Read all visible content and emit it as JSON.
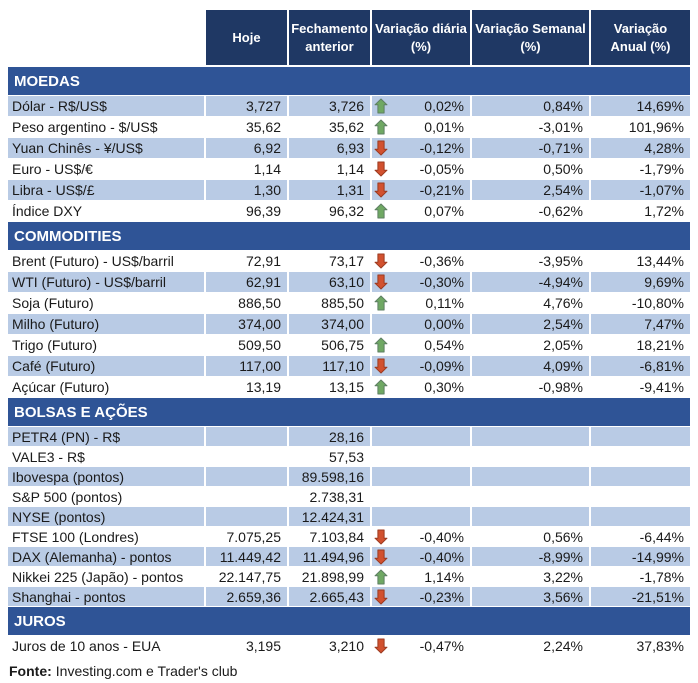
{
  "colors": {
    "header_bg": "#1F3864",
    "section_bg": "#2F5496",
    "row_shaded_bg": "#B9CBE5",
    "row_plain_bg": "#FFFFFF",
    "header_text": "#FFFFFF",
    "body_text": "#1A1A1A",
    "up_arrow_fill": "#6FA863",
    "up_arrow_border": "#5E7F63",
    "down_arrow_fill": "#D2512F",
    "down_arrow_border": "#9B3A20"
  },
  "chart_data": {
    "type": "table",
    "column_headers": {
      "hoje": "Hoje",
      "fechamento": "Fechamento\nanterior",
      "var_diaria": "Variação diária\n(%)",
      "var_semanal": "Variação Semanal\n(%)",
      "var_anual": "Variação\nAnual (%)"
    },
    "sections": [
      {
        "title": "MOEDAS",
        "rows": [
          {
            "label": "Dólar - R$/US$",
            "hoje": "3,727",
            "fechamento": "3,726",
            "arrow": "up",
            "var_diaria": "0,02%",
            "var_semanal": "0,84%",
            "var_anual": "14,69%",
            "shaded": true
          },
          {
            "label": "Peso argentino - $/US$",
            "hoje": "35,62",
            "fechamento": "35,62",
            "arrow": "up",
            "var_diaria": "0,01%",
            "var_semanal": "-3,01%",
            "var_anual": "101,96%",
            "shaded": false
          },
          {
            "label": "Yuan Chinês - ¥/US$",
            "hoje": "6,92",
            "fechamento": "6,93",
            "arrow": "down",
            "var_diaria": "-0,12%",
            "var_semanal": "-0,71%",
            "var_anual": "4,28%",
            "shaded": true
          },
          {
            "label": "Euro - US$/€",
            "hoje": "1,14",
            "fechamento": "1,14",
            "arrow": "down",
            "var_diaria": "-0,05%",
            "var_semanal": "0,50%",
            "var_anual": "-1,79%",
            "shaded": false
          },
          {
            "label": "Libra - US$/£",
            "hoje": "1,30",
            "fechamento": "1,31",
            "arrow": "down",
            "var_diaria": "-0,21%",
            "var_semanal": "2,54%",
            "var_anual": "-1,07%",
            "shaded": true
          },
          {
            "label": "Índice DXY",
            "hoje": "96,39",
            "fechamento": "96,32",
            "arrow": "up",
            "var_diaria": "0,07%",
            "var_semanal": "-0,62%",
            "var_anual": "1,72%",
            "shaded": false
          }
        ]
      },
      {
        "title": "COMMODITIES",
        "rows": [
          {
            "label": "Brent (Futuro) - US$/barril",
            "hoje": "72,91",
            "fechamento": "73,17",
            "arrow": "down",
            "var_diaria": "-0,36%",
            "var_semanal": "-3,95%",
            "var_anual": "13,44%",
            "shaded": false
          },
          {
            "label": "WTI (Futuro) - US$/barril",
            "hoje": "62,91",
            "fechamento": "63,10",
            "arrow": "down",
            "var_diaria": "-0,30%",
            "var_semanal": "-4,94%",
            "var_anual": "9,69%",
            "shaded": true
          },
          {
            "label": "Soja (Futuro)",
            "hoje": "886,50",
            "fechamento": "885,50",
            "arrow": "up",
            "var_diaria": "0,11%",
            "var_semanal": "4,76%",
            "var_anual": "-10,80%",
            "shaded": false
          },
          {
            "label": "Milho (Futuro)",
            "hoje": "374,00",
            "fechamento": "374,00",
            "arrow": null,
            "var_diaria": "0,00%",
            "var_semanal": "2,54%",
            "var_anual": "7,47%",
            "shaded": true
          },
          {
            "label": "Trigo (Futuro)",
            "hoje": "509,50",
            "fechamento": "506,75",
            "arrow": "up",
            "var_diaria": "0,54%",
            "var_semanal": "2,05%",
            "var_anual": "18,21%",
            "shaded": false
          },
          {
            "label": "Café (Futuro)",
            "hoje": "117,00",
            "fechamento": "117,10",
            "arrow": "down",
            "var_diaria": "-0,09%",
            "var_semanal": "4,09%",
            "var_anual": "-6,81%",
            "shaded": true
          },
          {
            "label": "Açúcar (Futuro)",
            "hoje": "13,19",
            "fechamento": "13,15",
            "arrow": "up",
            "var_diaria": "0,30%",
            "var_semanal": "-0,98%",
            "var_anual": "-9,41%",
            "shaded": false
          }
        ]
      },
      {
        "title": "BOLSAS E AÇÕES",
        "rows": [
          {
            "label": "PETR4 (PN) - R$",
            "hoje": "",
            "fechamento": "28,16",
            "arrow": null,
            "var_diaria": "",
            "var_semanal": "",
            "var_anual": "",
            "shaded": true
          },
          {
            "label": "VALE3 - R$",
            "hoje": "",
            "fechamento": "57,53",
            "arrow": null,
            "var_diaria": "",
            "var_semanal": "",
            "var_anual": "",
            "shaded": false
          },
          {
            "label": "Ibovespa (pontos)",
            "hoje": "",
            "fechamento": "89.598,16",
            "arrow": null,
            "var_diaria": "",
            "var_semanal": "",
            "var_anual": "",
            "shaded": true
          },
          {
            "label": "S&P 500 (pontos)",
            "hoje": "",
            "fechamento": "2.738,31",
            "arrow": null,
            "var_diaria": "",
            "var_semanal": "",
            "var_anual": "",
            "shaded": false
          },
          {
            "label": "NYSE (pontos)",
            "hoje": "",
            "fechamento": "12.424,31",
            "arrow": null,
            "var_diaria": "",
            "var_semanal": "",
            "var_anual": "",
            "shaded": true
          },
          {
            "label": "FTSE 100 (Londres)",
            "hoje": "7.075,25",
            "fechamento": "7.103,84",
            "arrow": "down",
            "var_diaria": "-0,40%",
            "var_semanal": "0,56%",
            "var_anual": "-6,44%",
            "shaded": false
          },
          {
            "label": "DAX (Alemanha) - pontos",
            "hoje": "11.449,42",
            "fechamento": "11.494,96",
            "arrow": "down",
            "var_diaria": "-0,40%",
            "var_semanal": "-8,99%",
            "var_anual": "-14,99%",
            "shaded": true
          },
          {
            "label": "Nikkei 225 (Japão) - pontos",
            "hoje": "22.147,75",
            "fechamento": "21.898,99",
            "arrow": "up",
            "var_diaria": "1,14%",
            "var_semanal": "3,22%",
            "var_anual": "-1,78%",
            "shaded": false
          },
          {
            "label": "Shanghai - pontos",
            "hoje": "2.659,36",
            "fechamento": "2.665,43",
            "arrow": "down",
            "var_diaria": "-0,23%",
            "var_semanal": "3,56%",
            "var_anual": "-21,51%",
            "shaded": true
          }
        ]
      },
      {
        "title": "JUROS",
        "rows": [
          {
            "label": "Juros de 10 anos - EUA",
            "hoje": "3,195",
            "fechamento": "3,210",
            "arrow": "down",
            "var_diaria": "-0,47%",
            "var_semanal": "2,24%",
            "var_anual": "37,83%",
            "shaded": false
          }
        ]
      }
    ],
    "footer": {
      "bold": "Fonte:",
      "text": "Investing.com e Trader's club"
    }
  }
}
